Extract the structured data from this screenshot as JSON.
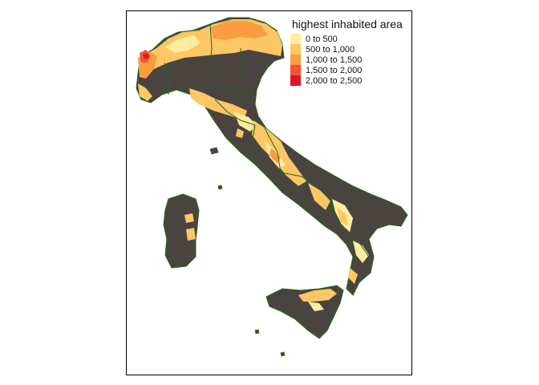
{
  "map": {
    "legend": {
      "title": "highest inhabited area",
      "classes": [
        {
          "label": "0 to 500",
          "color": "#FEEDA0"
        },
        {
          "label": "500 to 1,000",
          "color": "#FDC766"
        },
        {
          "label": "1,000 to 1,500",
          "color": "#FB9C43"
        },
        {
          "label": "1,500 to 2,000",
          "color": "#F2513A"
        },
        {
          "label": "2,000 to 2,500",
          "color": "#D7192A"
        }
      ]
    },
    "colors": {
      "land_base": "#4A4441",
      "region_border": "#1F6A12",
      "frame": "#000000",
      "background": "#FFFFFF"
    }
  }
}
